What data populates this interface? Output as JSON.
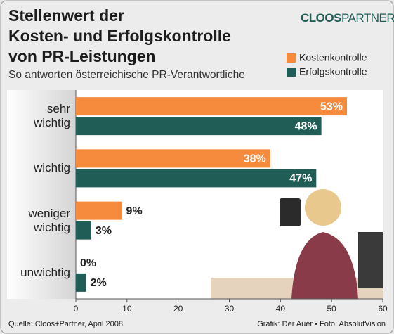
{
  "chart_data": {
    "type": "hbar",
    "title": "Stellenwert der\nKosten- und Erfolgskontrolle\nvon PR-Leistungen",
    "subtitle": "So antworten österreichische PR-Verantwortliche",
    "logo_bold": "CLOOS",
    "logo_light": "PARTNER",
    "source": "Quelle: Cloos+Partner, April 2008",
    "credits": "Grafik: Der Auer • Foto: AbsolutVision",
    "categories": [
      "sehr\nwichtig",
      "wichtig",
      "weniger\nwichtig",
      "unwichtig"
    ],
    "series": [
      {
        "name": "Kostenkontrolle",
        "color": "#f68b3d",
        "values": [
          53,
          38,
          9,
          0
        ],
        "value_labels": [
          "53%",
          "38%",
          "9%",
          "0%"
        ]
      },
      {
        "name": "Erfolgskontrolle",
        "color": "#1f5d56",
        "values": [
          48,
          47,
          3,
          2
        ],
        "value_labels": [
          "48%",
          "47%",
          "3%",
          "2%"
        ]
      }
    ],
    "xlim": [
      0,
      60
    ],
    "xticks": [
      0,
      10,
      20,
      30,
      40,
      50,
      60
    ],
    "legend": "top-right"
  }
}
